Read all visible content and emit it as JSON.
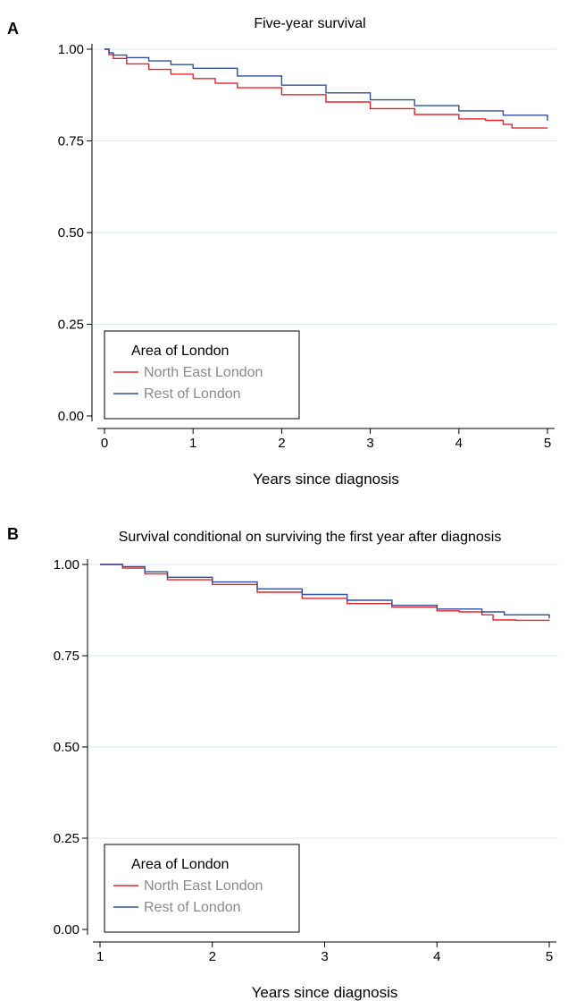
{
  "chart_data": [
    {
      "type": "line",
      "panel": "A",
      "title": "Five-year survival",
      "xlabel": "Years since diagnosis",
      "ylabel": "",
      "xlim": [
        0,
        5
      ],
      "ylim": [
        0,
        1
      ],
      "xticks": [
        "0",
        "1",
        "2",
        "3",
        "4",
        "5"
      ],
      "yticks": [
        "0.00",
        "0.25",
        "0.50",
        "0.75",
        "1.00"
      ],
      "grid": "horizontal",
      "legend": {
        "title": "Area of London",
        "position": "bottom-left"
      },
      "series": [
        {
          "name": "North East London",
          "color": "#e8202a",
          "x": [
            0,
            0.05,
            0.1,
            0.25,
            0.5,
            0.75,
            1.0,
            1.25,
            1.5,
            2.0,
            2.5,
            3.0,
            3.5,
            4.0,
            4.3,
            4.5,
            4.6,
            5.0
          ],
          "y": [
            1.0,
            0.985,
            0.975,
            0.96,
            0.945,
            0.932,
            0.92,
            0.907,
            0.895,
            0.876,
            0.856,
            0.838,
            0.822,
            0.81,
            0.806,
            0.795,
            0.785,
            0.785
          ]
        },
        {
          "name": "Rest of London",
          "color": "#2f4f9e",
          "x": [
            0,
            0.05,
            0.1,
            0.25,
            0.5,
            0.75,
            1.0,
            1.5,
            2.0,
            2.5,
            3.0,
            3.5,
            4.0,
            4.5,
            5.0
          ],
          "y": [
            1.0,
            0.99,
            0.984,
            0.977,
            0.968,
            0.958,
            0.948,
            0.927,
            0.902,
            0.881,
            0.862,
            0.846,
            0.832,
            0.82,
            0.805
          ]
        }
      ]
    },
    {
      "type": "line",
      "panel": "B",
      "title": "Survival conditional on surviving the first year after diagnosis",
      "xlabel": "Years since diagnosis",
      "ylabel": "",
      "xlim": [
        1,
        5
      ],
      "ylim": [
        0,
        1
      ],
      "xticks": [
        "1",
        "2",
        "3",
        "4",
        "5"
      ],
      "yticks": [
        "0.00",
        "0.25",
        "0.50",
        "0.75",
        "1.00"
      ],
      "grid": "horizontal",
      "legend": {
        "title": "Area of London",
        "position": "bottom-left"
      },
      "series": [
        {
          "name": "North East London",
          "color": "#e8202a",
          "x": [
            1.0,
            1.2,
            1.4,
            1.6,
            2.0,
            2.4,
            2.8,
            3.2,
            3.6,
            4.0,
            4.2,
            4.4,
            4.5,
            4.7,
            5.0
          ],
          "y": [
            1.0,
            0.99,
            0.974,
            0.958,
            0.945,
            0.924,
            0.907,
            0.893,
            0.883,
            0.873,
            0.87,
            0.862,
            0.848,
            0.847,
            0.846
          ]
        },
        {
          "name": "Rest of London",
          "color": "#2f4f9e",
          "x": [
            1.0,
            1.2,
            1.4,
            1.6,
            2.0,
            2.4,
            2.8,
            3.2,
            3.6,
            4.0,
            4.4,
            4.6,
            5.0
          ],
          "y": [
            1.0,
            0.994,
            0.98,
            0.965,
            0.952,
            0.933,
            0.918,
            0.902,
            0.888,
            0.878,
            0.87,
            0.862,
            0.852
          ]
        }
      ]
    }
  ]
}
